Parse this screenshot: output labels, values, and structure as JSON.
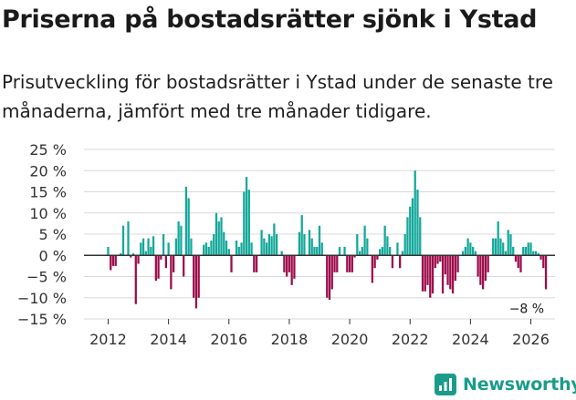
{
  "title": "Priserna på bostadsrätter sjönk i Ystad",
  "subtitle": "Prisutveckling för bostadsrätter i Ystad under de senaste tre månaderna, jämfört med tre månader tidigare.",
  "brand": "Newsworthy",
  "colors": {
    "positive": "#13a89a",
    "negative": "#9c0b4a",
    "grid": "#d9d9d9",
    "axis": "#333333",
    "brand": "#1a9c8a"
  },
  "chart_data": {
    "type": "bar",
    "title": "Priserna på bostadsrätter sjönk i Ystad",
    "xlabel": "",
    "ylabel": "",
    "ylim": [
      -15,
      25
    ],
    "yticks": [
      25,
      20,
      15,
      10,
      5,
      0,
      -5,
      -10,
      -15
    ],
    "ytick_labels": [
      "25 %",
      "20 %",
      "15 %",
      "10 %",
      "5 %",
      "0 %",
      "−5 %",
      "−10 %",
      "−15 %"
    ],
    "xlim": [
      2011.2,
      2026.8
    ],
    "xticks": [
      2012,
      2014,
      2016,
      2018,
      2020,
      2022,
      2024,
      2026
    ],
    "xtick_labels": [
      "2012",
      "2014",
      "2016",
      "2018",
      "2020",
      "2022",
      "2024",
      "2026"
    ],
    "grid": true,
    "annotation": {
      "text": "−8 %",
      "x": 2025.92,
      "y": -8
    },
    "series": [
      {
        "name": "Prisutveckling",
        "start": 2012.0,
        "step": 0.08333,
        "values": [
          2,
          -3.5,
          -2.5,
          -2.5,
          0,
          0.5,
          7,
          0,
          8,
          -0.5,
          0.5,
          -11.5,
          -2,
          3,
          4,
          1,
          4,
          2,
          4.5,
          -6,
          -5.5,
          -1,
          5,
          -3,
          3,
          -8,
          -4,
          4,
          8,
          7,
          -5,
          16.2,
          13.5,
          4,
          -10,
          -12.5,
          -10,
          0,
          2.5,
          3,
          2,
          3.5,
          5,
          10,
          8,
          9,
          5.5,
          3.5,
          1.5,
          -4,
          0,
          3.5,
          2,
          3,
          15,
          18.5,
          15.5,
          3,
          -4,
          -4,
          0,
          6,
          4,
          3,
          5,
          4.5,
          7.5,
          5,
          0,
          1,
          -4,
          -5,
          -4,
          -7,
          -5.5,
          0,
          5.5,
          9.5,
          5,
          0,
          6,
          4,
          2,
          2,
          7,
          3,
          0,
          -10,
          -10.5,
          -8,
          -4,
          -4,
          2,
          0,
          2,
          -4,
          -4,
          -4,
          -0.5,
          5,
          1,
          2,
          7,
          4,
          0,
          -6.5,
          -3,
          -1,
          1.5,
          2,
          7,
          4.5,
          2,
          -3,
          0,
          3,
          -3,
          1,
          5,
          9,
          11.5,
          13.5,
          20,
          15.5,
          9,
          -8.5,
          -8.5,
          -7,
          -10,
          -9,
          -3,
          -2,
          -1.5,
          -9,
          -4.5,
          -7,
          -8,
          -9,
          -6,
          -4,
          0,
          1,
          2,
          4,
          3,
          2,
          1,
          -5,
          -7,
          -8,
          -6,
          -4,
          0,
          4,
          4,
          8,
          4,
          3,
          1,
          6,
          5,
          2,
          -1.5,
          -3,
          -4,
          2,
          2,
          3,
          3,
          1,
          1,
          0.5,
          -1,
          -3,
          -8
        ]
      }
    ]
  }
}
